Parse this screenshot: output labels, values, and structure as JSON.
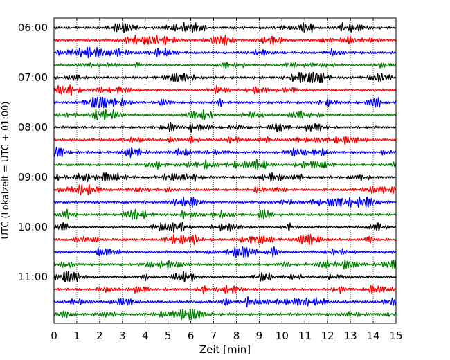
{
  "chart_data": {
    "type": "line",
    "subtype": "seismogram helicorder",
    "title": "",
    "xlabel": "Zeit  [min]",
    "ylabel": "UTC (Lokalzeit = UTC + 01:00)",
    "xlim": [
      0,
      15
    ],
    "x_ticks": [
      0,
      1,
      2,
      3,
      4,
      5,
      6,
      7,
      8,
      9,
      10,
      11,
      12,
      13,
      14,
      15
    ],
    "x_tick_labels": [
      "0",
      "1",
      "2",
      "3",
      "4",
      "5",
      "6",
      "7",
      "8",
      "9",
      "10",
      "11",
      "12",
      "13",
      "14",
      "15"
    ],
    "y_tick_labels": [
      "06:00",
      "07:00",
      "08:00",
      "09:00",
      "10:00",
      "11:00"
    ],
    "start_time": "06:00",
    "trace_interval_min": 15,
    "trace_count": 24,
    "trace_colors": [
      "#000000",
      "#ff0000",
      "#0000ff",
      "#007f00"
    ],
    "grid": "vertical dotted",
    "legend": "none"
  }
}
